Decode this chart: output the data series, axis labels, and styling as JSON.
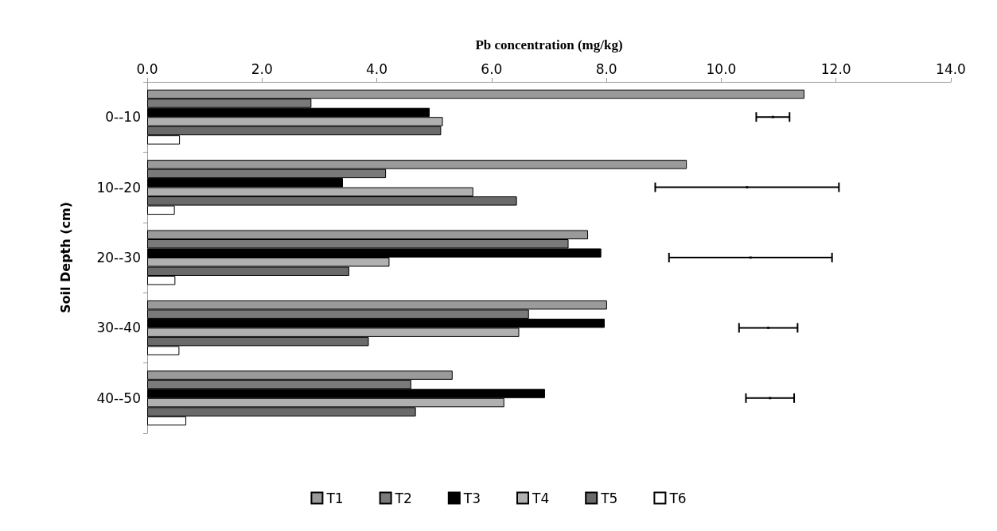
{
  "chart_data": {
    "type": "bar",
    "orientation": "horizontal",
    "xlabel": "Pb concentration (mg/kg)",
    "ylabel": "Soil Depth (cm)",
    "categories": [
      "0--10",
      "10--20",
      "20--30",
      "30--40",
      "40--50"
    ],
    "xlim": [
      0,
      14
    ],
    "xticks": [
      {
        "value": 0,
        "label": "0.0"
      },
      {
        "value": 2,
        "label": "2.0"
      },
      {
        "value": 4,
        "label": "4.0"
      },
      {
        "value": 6,
        "label": "6.0"
      },
      {
        "value": 8,
        "label": "8.0"
      },
      {
        "value": 10,
        "label": "10.0"
      },
      {
        "value": 12,
        "label": "12.0"
      },
      {
        "value": 14,
        "label": "14.0"
      }
    ],
    "grid": false,
    "legend": "bottom",
    "series": [
      {
        "name": "T1",
        "color": "#9a9a9a",
        "values": [
          11.45,
          9.4,
          7.68,
          8.01,
          5.32
        ]
      },
      {
        "name": "T2",
        "color": "#7a7a7a",
        "values": [
          2.86,
          4.16,
          7.34,
          6.65,
          4.6
        ]
      },
      {
        "name": "T3",
        "color": "#000000",
        "values": [
          4.92,
          3.41,
          7.91,
          7.97,
          6.93
        ]
      },
      {
        "name": "T4",
        "color": "#b0b0b0",
        "values": [
          5.15,
          5.68,
          4.22,
          6.48,
          6.22
        ]
      },
      {
        "name": "T5",
        "color": "#6a6a6a",
        "values": [
          5.12,
          6.44,
          3.52,
          3.86,
          4.68
        ]
      },
      {
        "name": "T6",
        "color": "#ffffff",
        "values": [
          0.57,
          0.48,
          0.49,
          0.56,
          0.68
        ]
      },
      {
        "type": "scatter",
        "marker": "square",
        "color": "#000000",
        "values": [
          10.9,
          10.45,
          10.51,
          10.82,
          10.85
        ],
        "errors": [
          0.29,
          1.6,
          1.42,
          0.51,
          0.42
        ]
      }
    ]
  }
}
